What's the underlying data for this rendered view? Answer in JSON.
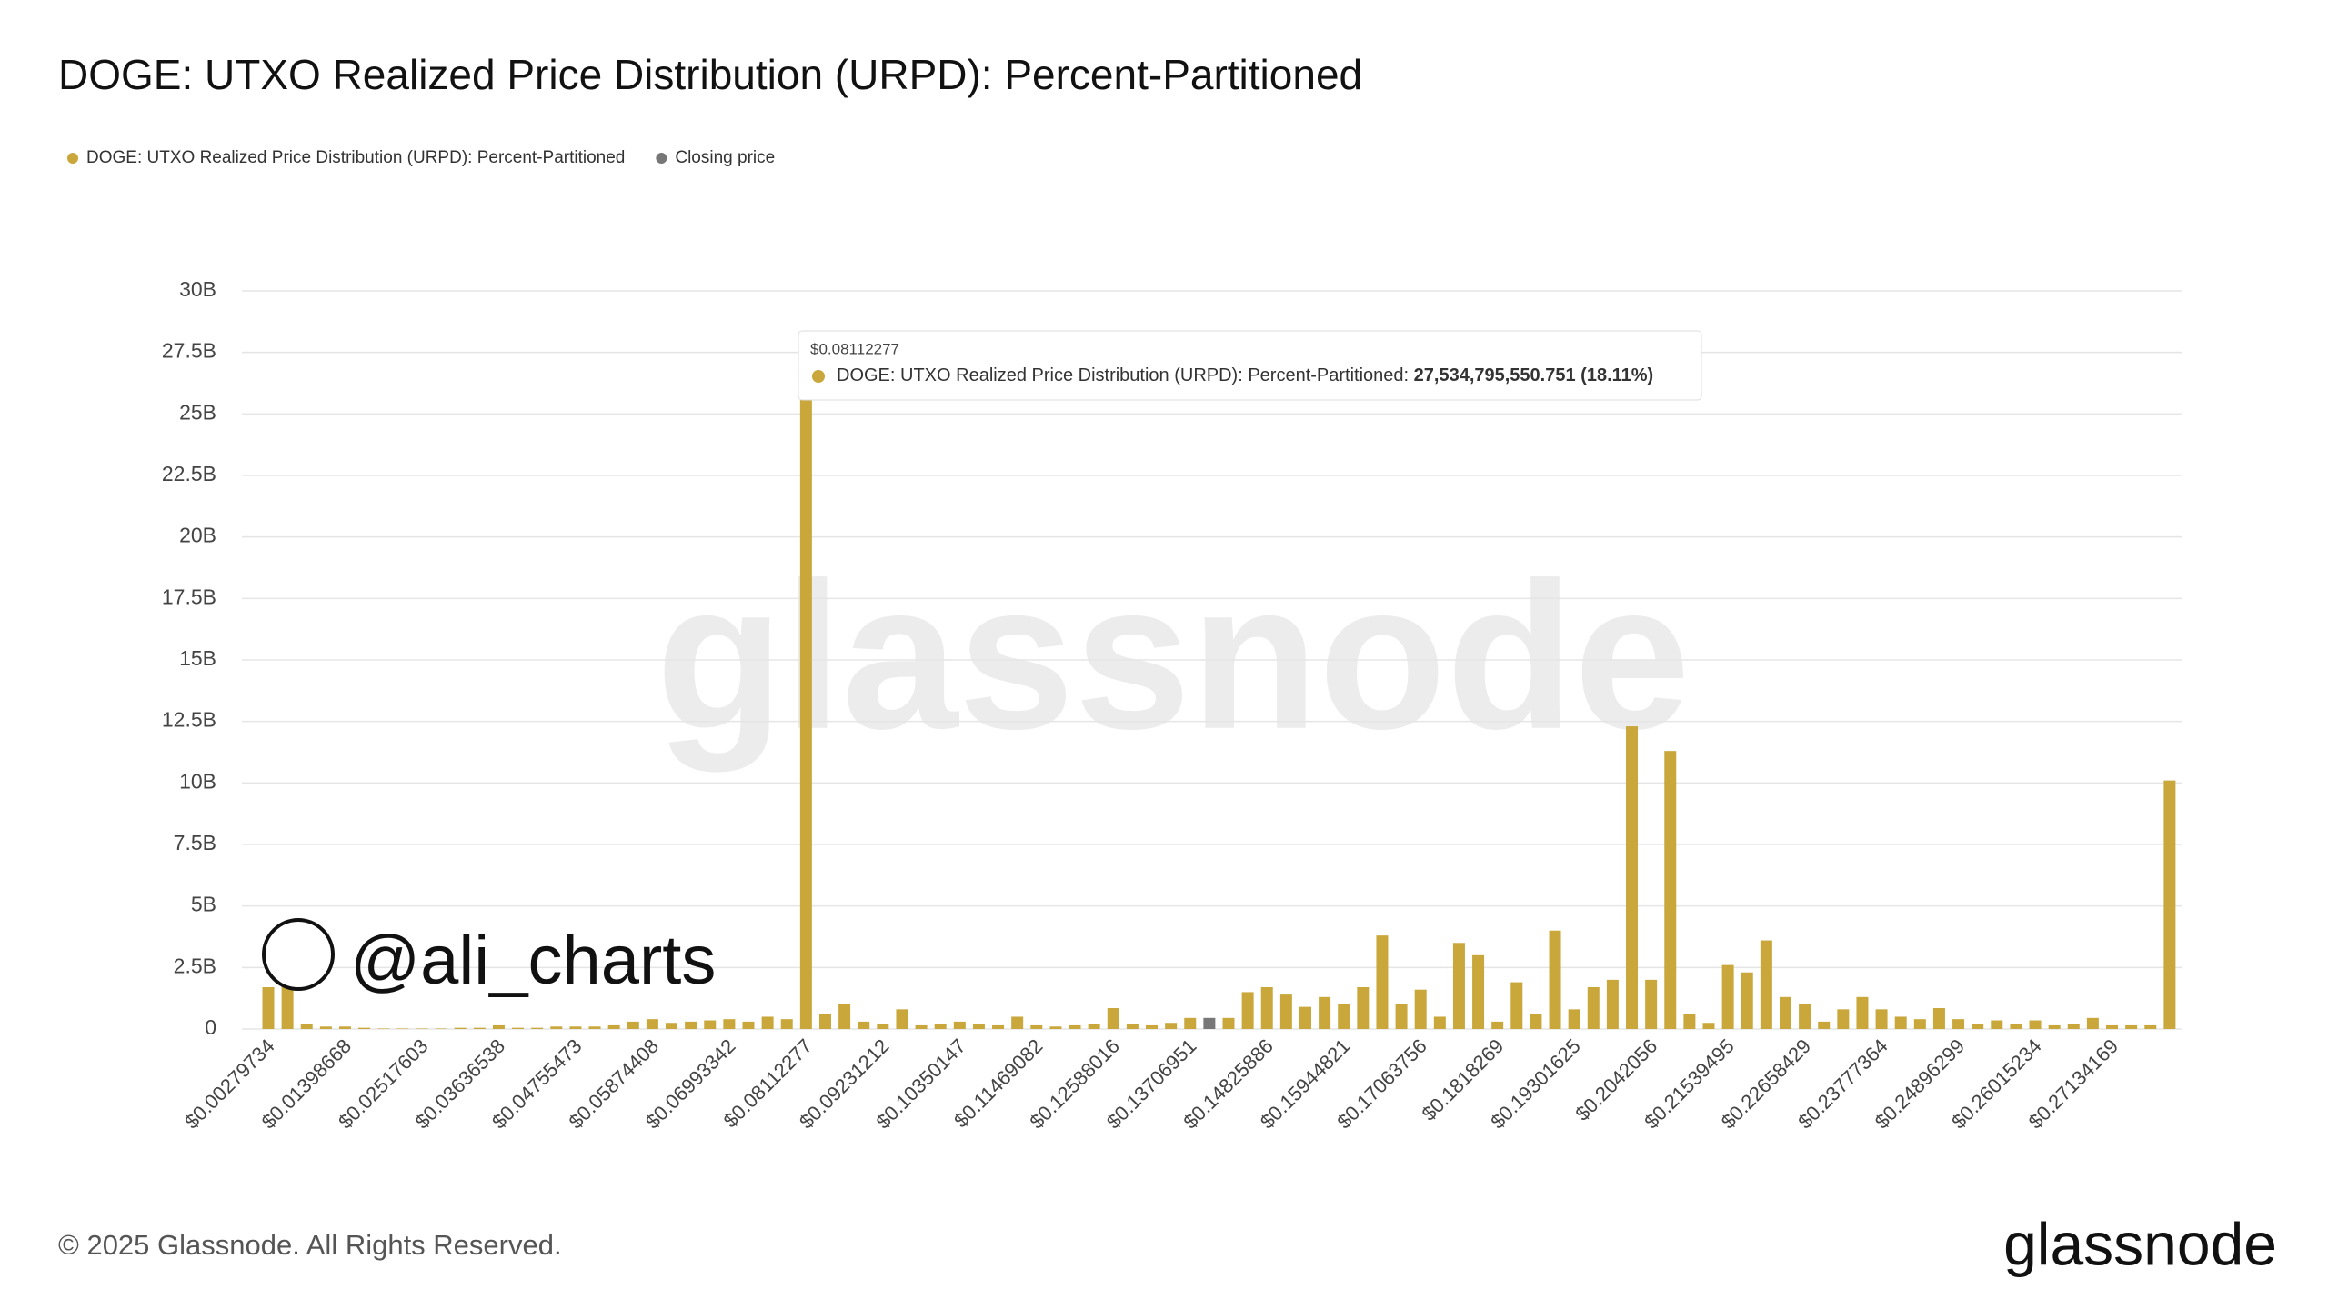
{
  "chart_data": {
    "type": "bar",
    "title": "DOGE: UTXO Realized Price Distribution (URPD): Percent-Partitioned",
    "categories": [
      "$0.00279734",
      null,
      null,
      null,
      "$0.01398668",
      null,
      null,
      null,
      "$0.02517603",
      null,
      null,
      null,
      "$0.03636538",
      null,
      null,
      null,
      "$0.04755473",
      null,
      null,
      null,
      "$0.05874408",
      null,
      null,
      null,
      "$0.06993342",
      null,
      null,
      null,
      "$0.08112277",
      null,
      null,
      null,
      "$0.09231212",
      null,
      null,
      null,
      "$0.10350147",
      null,
      null,
      null,
      "$0.11469082",
      null,
      null,
      null,
      "$0.12588016",
      null,
      null,
      null,
      "$0.13706951",
      null,
      null,
      null,
      "$0.14825886",
      null,
      null,
      null,
      "$0.15944821",
      null,
      null,
      null,
      "$0.17063756",
      null,
      null,
      null,
      "$0.1818269",
      null,
      null,
      null,
      "$0.19301625",
      null,
      null,
      null,
      "$0.2042056",
      null,
      null,
      null,
      "$0.21539495",
      null,
      null,
      null,
      "$0.22658429",
      null,
      null,
      null,
      "$0.23777364",
      null,
      null,
      null,
      "$0.24896299",
      null,
      null,
      null,
      "$0.26015234",
      null,
      null,
      null,
      "$0.27134169",
      null,
      null,
      null
    ],
    "series": [
      {
        "name": "DOGE: UTXO Realized Price Distribution (URPD): Percent-Partitioned",
        "color": "#c9a73b",
        "values": [
          1.7,
          1.8,
          0.2,
          0.1,
          0.1,
          0.05,
          0.02,
          0.02,
          0.02,
          0.02,
          0.05,
          0.05,
          0.15,
          0.05,
          0.05,
          0.1,
          0.1,
          0.1,
          0.15,
          0.3,
          0.4,
          0.25,
          0.3,
          0.35,
          0.4,
          0.3,
          0.5,
          0.4,
          27.534795550751,
          0.6,
          1.0,
          0.3,
          0.2,
          0.8,
          0.15,
          0.2,
          0.3,
          0.2,
          0.15,
          0.5,
          0.15,
          0.1,
          0.15,
          0.2,
          0.85,
          0.2,
          0.15,
          0.25,
          0.45,
          null,
          0.45,
          1.5,
          1.7,
          1.4,
          0.9,
          1.3,
          1.0,
          1.7,
          3.8,
          1.0,
          1.6,
          0.5,
          3.5,
          3.0,
          0.3,
          1.9,
          0.6,
          4.0,
          0.8,
          1.7,
          2.0,
          12.3,
          2.0,
          11.3,
          0.6,
          0.25,
          2.6,
          2.3,
          3.6,
          1.3,
          1.0,
          0.3,
          0.8,
          1.3,
          0.8,
          0.5,
          0.4,
          0.85,
          0.4,
          0.2,
          0.35,
          0.2,
          0.35,
          0.15,
          0.2,
          0.45,
          0.15,
          0.15,
          0.15,
          10.1
        ]
      },
      {
        "name": "Closing price",
        "color": "#777777",
        "values": [
          null,
          null,
          null,
          null,
          null,
          null,
          null,
          null,
          null,
          null,
          null,
          null,
          null,
          null,
          null,
          null,
          null,
          null,
          null,
          null,
          null,
          null,
          null,
          null,
          null,
          null,
          null,
          null,
          null,
          null,
          null,
          null,
          null,
          null,
          null,
          null,
          null,
          null,
          null,
          null,
          null,
          null,
          null,
          null,
          null,
          null,
          null,
          null,
          null,
          0.45,
          null,
          null,
          null,
          null,
          null,
          null,
          null,
          null,
          null,
          null,
          null,
          null,
          null,
          null,
          null,
          null,
          null,
          null,
          null,
          null,
          null,
          null,
          null,
          null,
          null,
          null,
          null,
          null,
          null,
          null,
          null,
          null,
          null,
          null,
          null,
          null,
          null,
          null,
          null,
          null,
          null,
          null,
          null,
          null,
          null,
          null,
          null,
          null,
          null,
          null
        ]
      }
    ],
    "ylim": [
      0,
      30
    ],
    "yticks": [
      0,
      {
        "value": 2.5,
        "label": "2.5B"
      },
      {
        "value": 5,
        "label": "5B"
      },
      {
        "value": 7.5,
        "label": "7.5B"
      },
      {
        "value": 10,
        "label": "10B"
      },
      {
        "value": 12.5,
        "label": "12.5B"
      },
      {
        "value": 15,
        "label": "15B"
      },
      {
        "value": 17.5,
        "label": "17.5B"
      },
      {
        "value": 20,
        "label": "20B"
      },
      {
        "value": 22.5,
        "label": "22.5B"
      },
      {
        "value": 25,
        "label": "25B"
      },
      {
        "value": 27.5,
        "label": "27.5B"
      },
      {
        "value": 30,
        "label": "30B"
      }
    ],
    "grid": true,
    "tooltip": {
      "x_label": "$0.08112277",
      "series_label": "DOGE: UTXO Realized Price Distribution (URPD): Percent-Partitioned:",
      "value_label": "27,534,795,550.751 (18.11%)"
    },
    "watermark": "glassnode",
    "author_badge": "@ali_charts",
    "copyright": "© 2025 Glassnode. All Rights Reserved.",
    "brand_logo": "glassnode"
  }
}
